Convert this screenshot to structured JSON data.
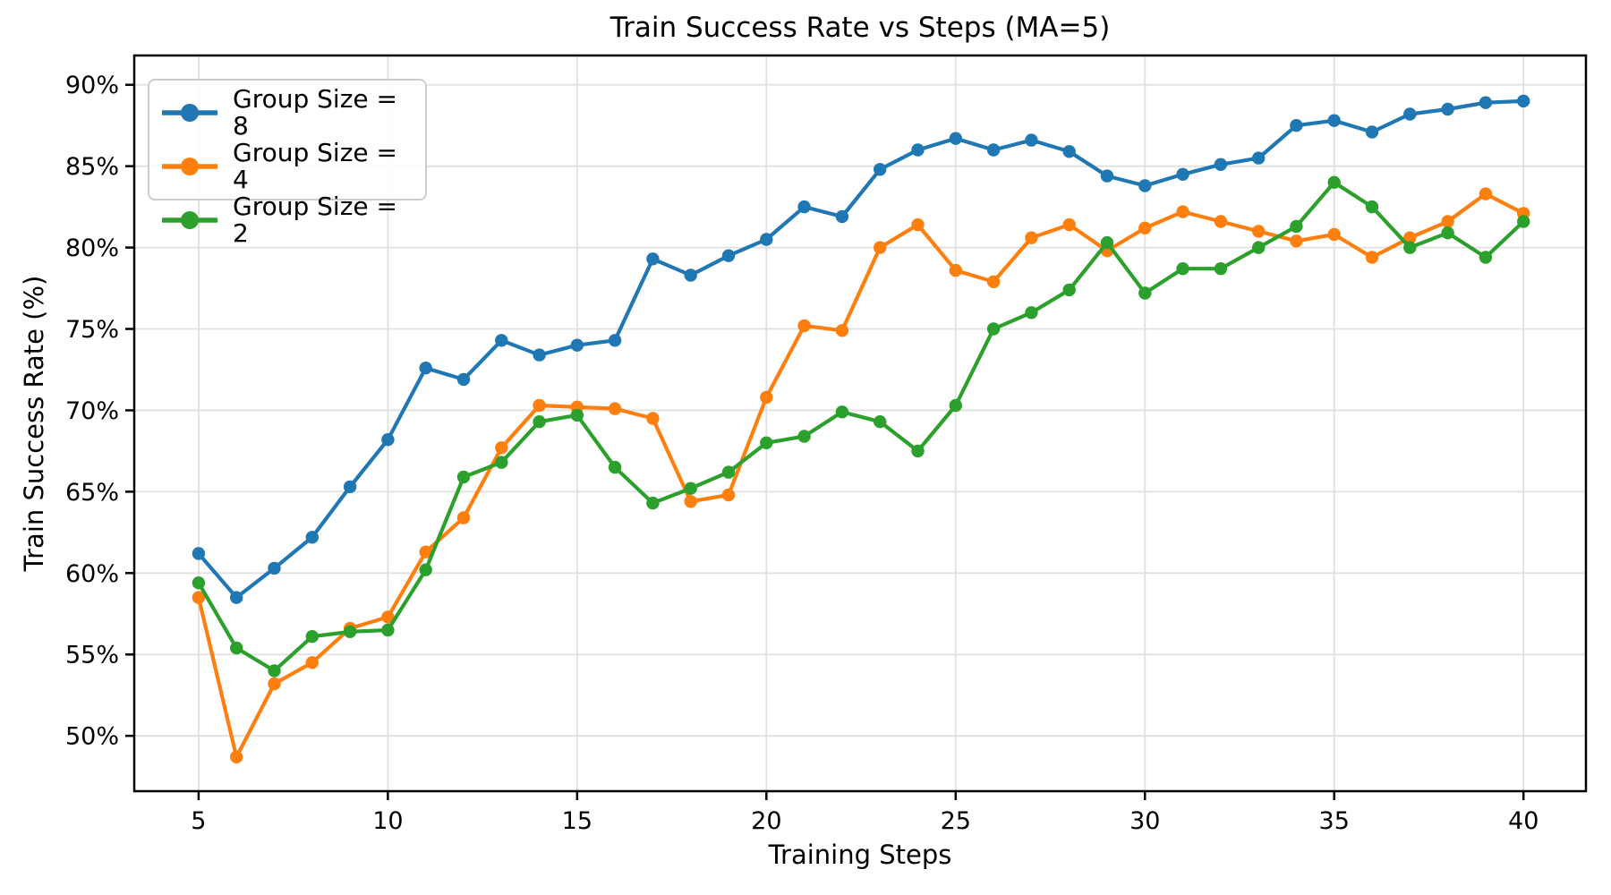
{
  "chart_data": {
    "type": "line",
    "title": "Train Success Rate vs Steps (MA=5)",
    "xlabel": "Training Steps",
    "ylabel": "Train Success Rate (%)",
    "x": [
      5,
      6,
      7,
      8,
      9,
      10,
      11,
      12,
      13,
      14,
      15,
      16,
      17,
      18,
      19,
      20,
      21,
      22,
      23,
      24,
      25,
      26,
      27,
      28,
      29,
      30,
      31,
      32,
      33,
      34,
      35,
      36,
      37,
      38,
      39,
      40
    ],
    "series": [
      {
        "name": "Group Size = 8",
        "color": "#1f77b4",
        "values": [
          61.2,
          58.5,
          60.3,
          62.2,
          65.3,
          68.2,
          72.6,
          71.9,
          74.3,
          73.4,
          74.0,
          74.3,
          79.3,
          78.3,
          79.5,
          80.5,
          82.5,
          81.9,
          84.8,
          86.0,
          86.7,
          86.0,
          86.6,
          85.9,
          84.4,
          83.8,
          84.5,
          85.1,
          85.5,
          87.5,
          87.8,
          87.1,
          88.2,
          88.5,
          88.9,
          89.0
        ]
      },
      {
        "name": "Group Size = 4",
        "color": "#ff7f0e",
        "values": [
          58.5,
          48.7,
          53.2,
          54.5,
          56.6,
          57.3,
          61.3,
          63.4,
          67.7,
          70.3,
          70.2,
          70.1,
          69.5,
          64.4,
          64.8,
          70.8,
          75.2,
          74.9,
          80.0,
          81.4,
          78.6,
          77.9,
          80.6,
          81.4,
          79.8,
          81.2,
          82.2,
          81.6,
          81.0,
          80.4,
          80.8,
          79.4,
          80.6,
          81.6,
          83.3,
          82.1
        ]
      },
      {
        "name": "Group Size = 2",
        "color": "#2ca02c",
        "values": [
          59.4,
          55.4,
          54.0,
          56.1,
          56.4,
          56.5,
          60.2,
          65.9,
          66.8,
          69.3,
          69.7,
          66.5,
          64.3,
          65.2,
          66.2,
          68.0,
          68.4,
          69.9,
          69.3,
          67.5,
          70.3,
          75.0,
          76.0,
          77.4,
          80.3,
          77.2,
          78.7,
          78.7,
          80.0,
          81.3,
          84.0,
          82.5,
          80.0,
          80.9,
          79.4,
          81.6
        ]
      }
    ],
    "xticks": [
      5,
      10,
      15,
      20,
      25,
      30,
      35,
      40
    ],
    "xtick_labels": [
      "5",
      "10",
      "15",
      "20",
      "25",
      "30",
      "35",
      "40"
    ],
    "yticks": [
      50,
      55,
      60,
      65,
      70,
      75,
      80,
      85,
      90
    ],
    "ytick_labels": [
      "50%",
      "55%",
      "60%",
      "65%",
      "70%",
      "75%",
      "80%",
      "85%",
      "90%"
    ],
    "xlim": [
      3.3,
      41.65
    ],
    "ylim": [
      46.6,
      91.8
    ],
    "grid": true,
    "grid_color": "#e0e0e0",
    "spine_color": "#000000",
    "text_color": "#000000",
    "legend": {
      "position": "upper left",
      "entries": [
        "Group Size = 8",
        "Group Size = 4",
        "Group Size = 2"
      ]
    }
  }
}
